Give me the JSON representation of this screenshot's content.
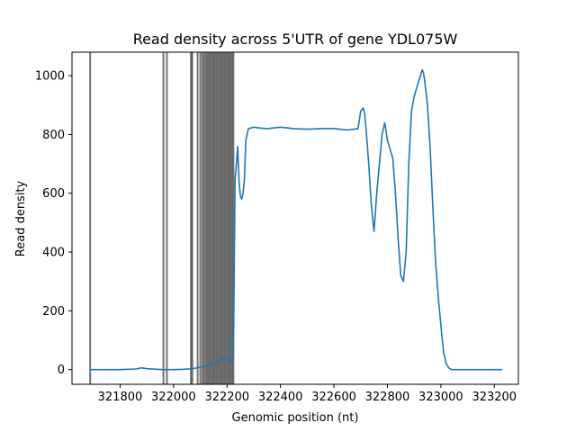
{
  "chart_data": {
    "type": "line",
    "title": "Read density across 5'UTR of gene YDL075W",
    "xlabel": "Genomic position (nt)",
    "ylabel": "Read density",
    "xlim": [
      321620,
      323290
    ],
    "ylim": [
      -50,
      1080
    ],
    "x_ticks": [
      321800,
      322000,
      322200,
      322400,
      322600,
      322800,
      323000,
      323200
    ],
    "y_ticks": [
      0,
      200,
      400,
      600,
      800,
      1000
    ],
    "grid": false,
    "legend": "none",
    "colors": {
      "line": "#1f77b4",
      "vlines": "#000000",
      "axes": "#000000"
    },
    "series": [
      {
        "color": "#1f77b4",
        "x": [
          321690,
          321750,
          321800,
          321860,
          321880,
          321900,
          321960,
          322000,
          322040,
          322070,
          322100,
          322130,
          322160,
          322180,
          322200,
          322210,
          322220,
          322225,
          322230,
          322235,
          322240,
          322245,
          322250,
          322255,
          322260,
          322265,
          322270,
          322280,
          322300,
          322320,
          322350,
          322400,
          322450,
          322500,
          322550,
          322600,
          322650,
          322690,
          322700,
          322710,
          322715,
          322720,
          322730,
          322740,
          322750,
          322760,
          322770,
          322780,
          322790,
          322800,
          322810,
          322820,
          322830,
          322840,
          322850,
          322860,
          322870,
          322880,
          322890,
          322900,
          322910,
          322920,
          322930,
          322935,
          322940,
          322950,
          322960,
          322970,
          322980,
          322990,
          323000,
          323010,
          323020,
          323030,
          323040,
          323050,
          323060,
          323080,
          323100,
          323150,
          323230
        ],
        "values": [
          0,
          0,
          0,
          2,
          6,
          3,
          0,
          0,
          1,
          3,
          8,
          15,
          25,
          35,
          40,
          32,
          20,
          150,
          650,
          700,
          760,
          640,
          590,
          580,
          600,
          650,
          780,
          820,
          825,
          822,
          820,
          825,
          820,
          818,
          820,
          820,
          815,
          820,
          880,
          890,
          870,
          820,
          700,
          560,
          470,
          600,
          700,
          800,
          840,
          780,
          750,
          720,
          600,
          450,
          320,
          300,
          400,
          700,
          880,
          930,
          960,
          990,
          1020,
          1010,
          980,
          900,
          750,
          550,
          370,
          250,
          150,
          60,
          20,
          5,
          0,
          0,
          0,
          0,
          0,
          0,
          0
        ]
      }
    ],
    "vlines": [
      321688,
      321962,
      321975,
      322065,
      322070,
      322090,
      322100,
      322108,
      322115,
      322122,
      322128,
      322134,
      322140,
      322146,
      322152,
      322158,
      322164,
      322170,
      322176,
      322182,
      322188,
      322194,
      322200,
      322206,
      322212,
      322218,
      322224
    ]
  }
}
